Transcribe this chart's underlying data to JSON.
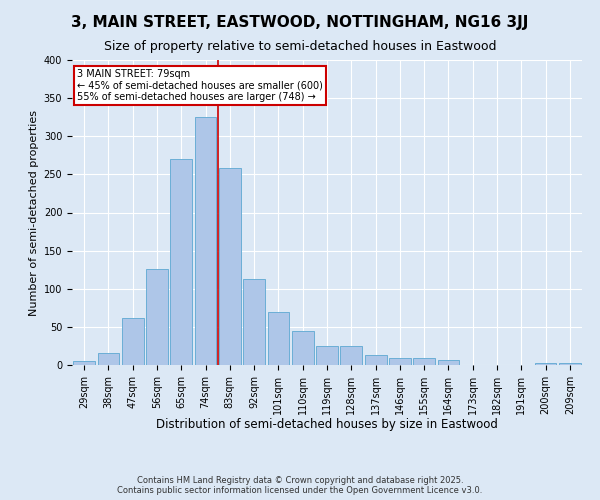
{
  "title": "3, MAIN STREET, EASTWOOD, NOTTINGHAM, NG16 3JJ",
  "subtitle": "Size of property relative to semi-detached houses in Eastwood",
  "xlabel": "Distribution of semi-detached houses by size in Eastwood",
  "ylabel": "Number of semi-detached properties",
  "categories": [
    "29sqm",
    "38sqm",
    "47sqm",
    "56sqm",
    "65sqm",
    "74sqm",
    "83sqm",
    "92sqm",
    "101sqm",
    "110sqm",
    "119sqm",
    "128sqm",
    "137sqm",
    "146sqm",
    "155sqm",
    "164sqm",
    "173sqm",
    "182sqm",
    "191sqm",
    "200sqm",
    "209sqm"
  ],
  "values": [
    5,
    16,
    62,
    126,
    270,
    325,
    258,
    113,
    70,
    45,
    25,
    25,
    13,
    9,
    9,
    6,
    0,
    0,
    0,
    2,
    2
  ],
  "bar_color": "#aec6e8",
  "bar_edge_color": "#6baed6",
  "vline_color": "#cc0000",
  "annotation_text": "3 MAIN STREET: 79sqm\n← 45% of semi-detached houses are smaller (600)\n55% of semi-detached houses are larger (748) →",
  "annotation_box_color": "#ffffff",
  "annotation_box_edge": "#cc0000",
  "footer": "Contains HM Land Registry data © Crown copyright and database right 2025.\nContains public sector information licensed under the Open Government Licence v3.0.",
  "bg_color": "#dce8f5",
  "plot_bg_color": "#dce8f5",
  "ylim": [
    0,
    400
  ],
  "yticks": [
    0,
    50,
    100,
    150,
    200,
    250,
    300,
    350,
    400
  ],
  "title_fontsize": 11,
  "subtitle_fontsize": 9,
  "xlabel_fontsize": 8.5,
  "ylabel_fontsize": 8,
  "tick_fontsize": 7,
  "footer_fontsize": 6,
  "annotation_fontsize": 7
}
